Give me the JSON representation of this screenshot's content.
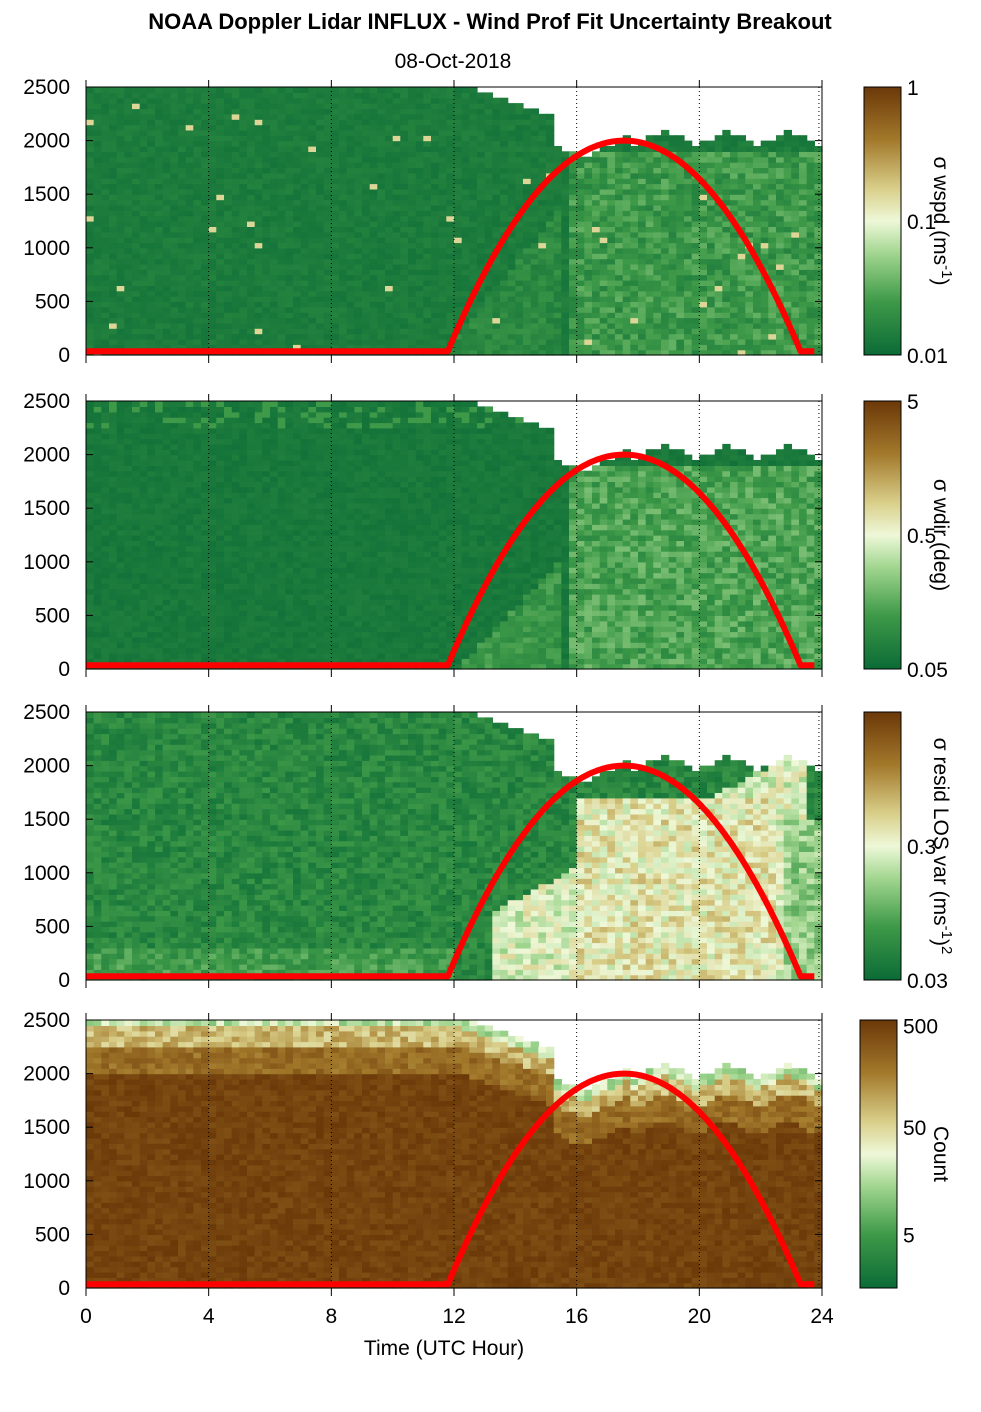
{
  "title": "NOAA Doppler Lidar INFLUX - Wind Prof Fit Uncertainty Breakout",
  "subtitle": "08-Oct-2018",
  "colors": {
    "sun_curve": "#ff0000",
    "green_dark": "#0b6b36",
    "brown_dark": "#6b3808"
  },
  "chart_data": [
    {
      "type": "heatmap",
      "xlabel": "",
      "ylabel": "",
      "xlim": [
        0,
        24
      ],
      "ylim": [
        0,
        2500
      ],
      "x_ticks": [
        "0",
        "4",
        "8",
        "12",
        "16",
        "20",
        "24"
      ],
      "y_ticks": [
        "0",
        "500",
        "1000",
        "1500",
        "2000",
        "2500"
      ],
      "colorbar": {
        "label_main": "σ wspd (ms",
        "label_sup": "-1",
        "label_end": ")",
        "ticks": [
          "0.01",
          "0.1",
          "1"
        ],
        "scale": "log"
      },
      "sun_curve": {
        "rise_hour": 11.8,
        "set_hour": 23.3,
        "peak_hour": 17.5,
        "peak_value": 2000
      }
    },
    {
      "type": "heatmap",
      "xlabel": "",
      "ylabel": "",
      "xlim": [
        0,
        24
      ],
      "ylim": [
        0,
        2500
      ],
      "x_ticks": [
        "0",
        "4",
        "8",
        "12",
        "16",
        "20",
        "24"
      ],
      "y_ticks": [
        "0",
        "500",
        "1000",
        "1500",
        "2000",
        "2500"
      ],
      "colorbar": {
        "label_main": "σ wdir (deg)",
        "label_sup": "",
        "label_end": "",
        "ticks": [
          "0.05",
          "0.5",
          "5"
        ],
        "scale": "log"
      },
      "sun_curve": {
        "rise_hour": 11.8,
        "set_hour": 23.3,
        "peak_hour": 17.5,
        "peak_value": 2000
      }
    },
    {
      "type": "heatmap",
      "xlabel": "",
      "ylabel": "",
      "xlim": [
        0,
        24
      ],
      "ylim": [
        0,
        2500
      ],
      "x_ticks": [
        "0",
        "4",
        "8",
        "12",
        "16",
        "20",
        "24"
      ],
      "y_ticks": [
        "0",
        "500",
        "1000",
        "1500",
        "2000",
        "2500"
      ],
      "colorbar": {
        "label_main": "σ resid LOS var (ms",
        "label_sup": "-1",
        "label_end": ")",
        "label_sup2": "2",
        "ticks": [
          "0.03",
          "0.3",
          ""
        ],
        "scale": "log"
      },
      "sun_curve": {
        "rise_hour": 11.8,
        "set_hour": 23.3,
        "peak_hour": 17.5,
        "peak_value": 2000
      }
    },
    {
      "type": "heatmap",
      "xlabel": "Time (UTC Hour)",
      "ylabel": "",
      "xlim": [
        0,
        24
      ],
      "ylim": [
        0,
        2500
      ],
      "x_ticks": [
        "0",
        "4",
        "8",
        "12",
        "16",
        "20",
        "24"
      ],
      "y_ticks": [
        "0",
        "500",
        "1000",
        "1500",
        "2000",
        "2500"
      ],
      "colorbar": {
        "label_main": "Count",
        "label_sup": "",
        "label_end": "",
        "ticks": [
          "5",
          "50",
          "500"
        ],
        "scale": "log"
      },
      "sun_curve": {
        "rise_hour": 11.8,
        "set_hour": 23.3,
        "peak_hour": 17.5,
        "peak_value": 2000
      }
    }
  ]
}
